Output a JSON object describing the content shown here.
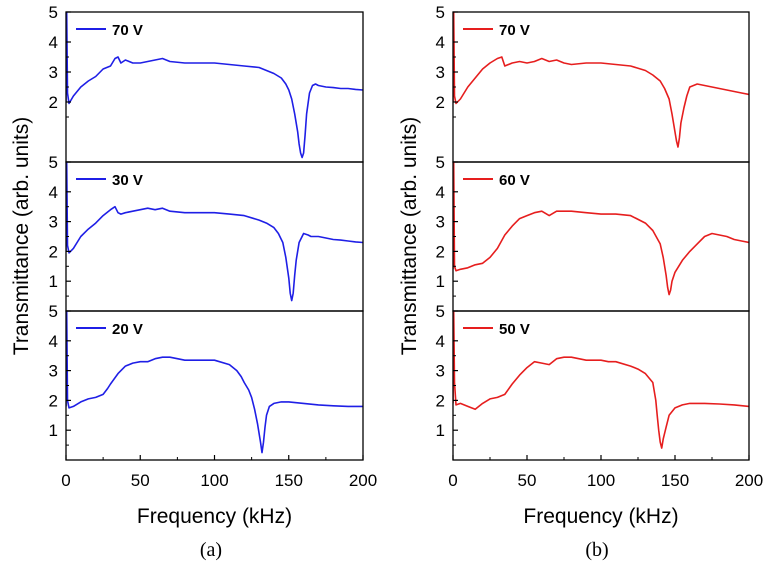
{
  "chart_data": [
    {
      "type": "line",
      "caption": "(a)",
      "xlabel": "Frequency (kHz)",
      "ylabel": "Transmittance (arb. units)",
      "xlim": [
        0,
        200
      ],
      "xticks": [
        "0",
        "50",
        "100",
        "150",
        "200"
      ],
      "color": "#1f1fe6",
      "panels": [
        {
          "series_name": "70 V",
          "ylim": [
            0,
            5
          ],
          "yticks": [
            "2",
            "3",
            "4",
            "5"
          ],
          "x": [
            0,
            0.5,
            1,
            2,
            5,
            10,
            15,
            20,
            25,
            30,
            33,
            35,
            37,
            40,
            45,
            50,
            55,
            60,
            65,
            70,
            80,
            90,
            100,
            110,
            120,
            130,
            140,
            145,
            148,
            150,
            152,
            154,
            156,
            157,
            158,
            159,
            160,
            161,
            162,
            164,
            166,
            168,
            170,
            175,
            180,
            185,
            190,
            195,
            200
          ],
          "y": [
            2.0,
            5.0,
            2.3,
            1.95,
            2.2,
            2.5,
            2.7,
            2.85,
            3.1,
            3.2,
            3.45,
            3.5,
            3.3,
            3.4,
            3.3,
            3.3,
            3.35,
            3.4,
            3.45,
            3.35,
            3.3,
            3.3,
            3.3,
            3.25,
            3.2,
            3.15,
            2.95,
            2.8,
            2.6,
            2.4,
            2.1,
            1.6,
            1.0,
            0.6,
            0.3,
            0.15,
            0.3,
            0.9,
            1.6,
            2.3,
            2.55,
            2.6,
            2.55,
            2.5,
            2.48,
            2.45,
            2.45,
            2.42,
            2.4
          ]
        },
        {
          "series_name": "30 V",
          "ylim": [
            0,
            5
          ],
          "yticks": [
            "1",
            "2",
            "3",
            "4",
            "5"
          ],
          "x": [
            0,
            0.5,
            1,
            2,
            5,
            10,
            15,
            20,
            25,
            30,
            33,
            35,
            37,
            40,
            45,
            50,
            55,
            60,
            65,
            70,
            80,
            90,
            100,
            110,
            120,
            130,
            135,
            140,
            143,
            146,
            148,
            150,
            151,
            152,
            153,
            154,
            155,
            157,
            160,
            163,
            165,
            170,
            175,
            180,
            185,
            190,
            195,
            200
          ],
          "y": [
            2.0,
            5.0,
            2.2,
            1.95,
            2.1,
            2.5,
            2.75,
            2.95,
            3.2,
            3.4,
            3.5,
            3.3,
            3.25,
            3.3,
            3.35,
            3.4,
            3.45,
            3.4,
            3.45,
            3.35,
            3.3,
            3.3,
            3.3,
            3.25,
            3.2,
            3.05,
            2.95,
            2.8,
            2.6,
            2.3,
            1.8,
            1.1,
            0.6,
            0.35,
            0.6,
            1.2,
            1.7,
            2.3,
            2.6,
            2.55,
            2.5,
            2.5,
            2.45,
            2.4,
            2.38,
            2.35,
            2.32,
            2.3
          ]
        },
        {
          "series_name": "20 V",
          "ylim": [
            0,
            5
          ],
          "yticks": [
            "1",
            "2",
            "3",
            "4",
            "5"
          ],
          "x": [
            0,
            0.5,
            1,
            2,
            5,
            10,
            15,
            20,
            25,
            28,
            30,
            35,
            40,
            45,
            50,
            55,
            60,
            65,
            70,
            75,
            80,
            90,
            100,
            110,
            115,
            118,
            120,
            123,
            125,
            127,
            129,
            131,
            132,
            133,
            134,
            135,
            137,
            140,
            145,
            150,
            160,
            170,
            180,
            190,
            200
          ],
          "y": [
            1.8,
            5.0,
            2.0,
            1.75,
            1.8,
            1.95,
            2.05,
            2.1,
            2.2,
            2.4,
            2.55,
            2.9,
            3.15,
            3.25,
            3.3,
            3.3,
            3.4,
            3.45,
            3.45,
            3.4,
            3.35,
            3.35,
            3.35,
            3.2,
            3.0,
            2.8,
            2.6,
            2.35,
            2.1,
            1.7,
            1.2,
            0.6,
            0.25,
            0.6,
            1.1,
            1.5,
            1.8,
            1.9,
            1.95,
            1.95,
            1.9,
            1.85,
            1.82,
            1.8,
            1.8
          ]
        }
      ]
    },
    {
      "type": "line",
      "caption": "(b)",
      "xlabel": "Frequency (kHz)",
      "ylabel": "Transmittance (arb. units)",
      "xlim": [
        0,
        200
      ],
      "xticks": [
        "0",
        "50",
        "100",
        "150",
        "200"
      ],
      "color": "#e61e1e",
      "panels": [
        {
          "series_name": "70 V",
          "ylim": [
            0,
            5
          ],
          "yticks": [
            "2",
            "3",
            "4",
            "5"
          ],
          "x": [
            0,
            0.5,
            1,
            2,
            5,
            10,
            15,
            20,
            25,
            30,
            33,
            35,
            40,
            45,
            50,
            55,
            60,
            65,
            70,
            75,
            80,
            90,
            100,
            110,
            120,
            130,
            135,
            140,
            143,
            146,
            148,
            150,
            151,
            152,
            153,
            154,
            156,
            158,
            160,
            165,
            170,
            175,
            180,
            185,
            190,
            195,
            200
          ],
          "y": [
            2.0,
            5.0,
            2.2,
            1.95,
            2.1,
            2.5,
            2.8,
            3.1,
            3.3,
            3.45,
            3.5,
            3.2,
            3.3,
            3.35,
            3.3,
            3.35,
            3.45,
            3.35,
            3.4,
            3.3,
            3.25,
            3.3,
            3.3,
            3.25,
            3.2,
            3.05,
            2.9,
            2.7,
            2.45,
            2.1,
            1.6,
            1.0,
            0.7,
            0.5,
            0.8,
            1.3,
            1.8,
            2.2,
            2.5,
            2.6,
            2.55,
            2.5,
            2.45,
            2.4,
            2.35,
            2.3,
            2.25
          ]
        },
        {
          "series_name": "60 V",
          "ylim": [
            0,
            5
          ],
          "yticks": [
            "1",
            "2",
            "3",
            "4",
            "5"
          ],
          "x": [
            0,
            0.5,
            1,
            2,
            5,
            10,
            15,
            20,
            25,
            30,
            35,
            40,
            45,
            50,
            55,
            60,
            65,
            70,
            75,
            80,
            90,
            100,
            110,
            120,
            130,
            135,
            140,
            142,
            144,
            145,
            146,
            147,
            148,
            150,
            155,
            160,
            165,
            170,
            175,
            180,
            185,
            190,
            195,
            200
          ],
          "y": [
            1.4,
            5.0,
            1.5,
            1.35,
            1.4,
            1.45,
            1.55,
            1.6,
            1.8,
            2.1,
            2.55,
            2.85,
            3.1,
            3.2,
            3.3,
            3.35,
            3.2,
            3.35,
            3.35,
            3.35,
            3.3,
            3.25,
            3.25,
            3.2,
            2.95,
            2.7,
            2.25,
            1.8,
            1.2,
            0.8,
            0.55,
            0.7,
            1.0,
            1.3,
            1.7,
            2.0,
            2.25,
            2.5,
            2.6,
            2.55,
            2.5,
            2.4,
            2.35,
            2.3
          ]
        },
        {
          "series_name": "50 V",
          "ylim": [
            0,
            5
          ],
          "yticks": [
            "1",
            "2",
            "3",
            "4",
            "5"
          ],
          "x": [
            0,
            0.5,
            1,
            2,
            5,
            10,
            15,
            20,
            25,
            30,
            35,
            40,
            45,
            50,
            55,
            60,
            65,
            70,
            75,
            80,
            90,
            100,
            105,
            110,
            120,
            125,
            130,
            135,
            137,
            138,
            139,
            140,
            141,
            142,
            144,
            146,
            150,
            155,
            160,
            170,
            180,
            190,
            200
          ],
          "y": [
            1.9,
            5.0,
            2.6,
            1.85,
            1.9,
            1.8,
            1.7,
            1.9,
            2.05,
            2.1,
            2.2,
            2.55,
            2.85,
            3.1,
            3.3,
            3.25,
            3.2,
            3.4,
            3.45,
            3.45,
            3.35,
            3.35,
            3.3,
            3.3,
            3.15,
            3.05,
            2.9,
            2.6,
            2.0,
            1.5,
            1.0,
            0.6,
            0.4,
            0.7,
            1.1,
            1.5,
            1.75,
            1.85,
            1.9,
            1.9,
            1.88,
            1.85,
            1.8
          ]
        }
      ]
    }
  ]
}
